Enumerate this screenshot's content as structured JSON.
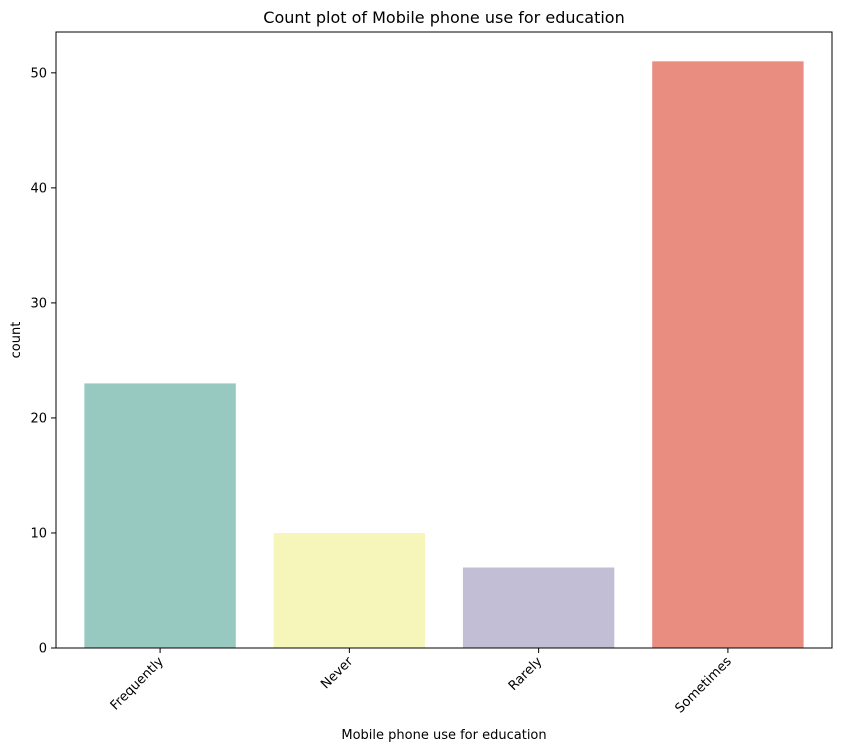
{
  "chart_data": {
    "type": "bar",
    "title": "Count plot of Mobile phone use for education",
    "xlabel": "Mobile phone use for education",
    "ylabel": "count",
    "categories": [
      "Frequently",
      "Never",
      "Rarely",
      "Sometimes"
    ],
    "values": [
      23,
      10,
      7,
      51
    ],
    "colors": [
      "#97c9c1",
      "#f6f6bb",
      "#c1bed6",
      "#e98d81"
    ],
    "ylim": [
      0,
      53.55
    ],
    "yticks": [
      0,
      10,
      20,
      30,
      40,
      50
    ],
    "x_tick_rotation": 45,
    "grid": false,
    "legend": "none"
  }
}
